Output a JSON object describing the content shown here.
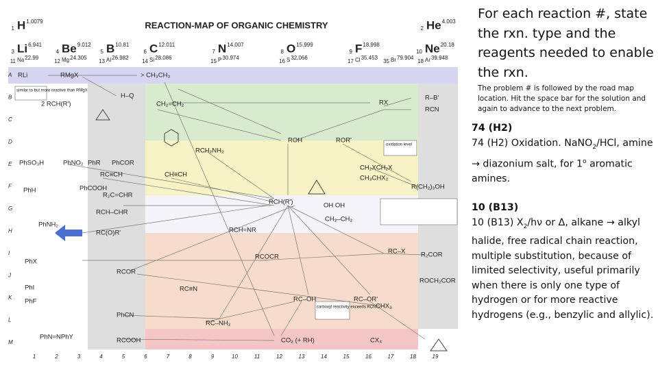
{
  "map": {
    "title": "REACTION-MAP OF ORGANIC CHEMISTRY",
    "elements": [
      {
        "number": 1,
        "symbol": "H",
        "mass": 1.0079
      },
      {
        "number": 2,
        "symbol": "He",
        "mass": 4.003
      },
      {
        "number": 3,
        "symbol": "Li",
        "mass": 6.941
      },
      {
        "number": 4,
        "symbol": "Be",
        "mass": 9.012
      },
      {
        "number": 5,
        "symbol": "B",
        "mass": 10.81
      },
      {
        "number": 6,
        "symbol": "C",
        "mass": 12.011
      },
      {
        "number": 7,
        "symbol": "N",
        "mass": 14.007
      },
      {
        "number": 8,
        "symbol": "O",
        "mass": 15.999
      },
      {
        "number": 9,
        "symbol": "F",
        "mass": 18.998
      },
      {
        "number": 10,
        "symbol": "Ne",
        "mass": 20.18
      }
    ],
    "elements_small": [
      {
        "number": 11,
        "symbol": "Na",
        "mass": 22.99
      },
      {
        "number": 12,
        "symbol": "Mg",
        "mass": 24.305
      },
      {
        "number": 13,
        "symbol": "Al",
        "mass": 26.982
      },
      {
        "number": 14,
        "symbol": "Si",
        "mass": 28.086
      },
      {
        "number": 15,
        "symbol": "P",
        "mass": 30.974
      },
      {
        "number": 16,
        "symbol": "S",
        "mass": 32.066
      },
      {
        "number": 17,
        "symbol": "Cl",
        "mass": 35.453
      },
      {
        "number": 35,
        "symbol": "Br",
        "mass": 79.904
      },
      {
        "number": 18,
        "symbol": "Ar",
        "mass": 39.948
      }
    ],
    "row_labels": [
      "A",
      "B",
      "C",
      "D",
      "E",
      "F",
      "G",
      "H",
      "I",
      "J",
      "K",
      "L",
      "M"
    ],
    "col_labels": [
      "1",
      "2",
      "3",
      "4",
      "5",
      "6",
      "7",
      "8",
      "9",
      "10",
      "11",
      "12",
      "13",
      "14",
      "15",
      "16",
      "17",
      "18",
      "19"
    ],
    "compounds": [
      "RLi",
      "RMgX",
      "> CH₃CH₃",
      "H–Q",
      "CH₂=CH₂",
      "RX",
      "R–B'",
      "RCN",
      "ROH",
      "ROR'",
      "PhSO₃H",
      "PhNO₂",
      "PhR",
      "PhCOR",
      "RCH₂NH₂",
      "CH≡CH",
      "RC≡CH",
      "CH₂XCH₂X",
      "CH₃CHX₂",
      "R(CH₂)₃OH",
      "PhH",
      "PhCOOH",
      "RCH(R')",
      "RCH–CHR",
      "CH₂–CH₂",
      "RCH=NR",
      "PhNH₂",
      "RC(O)R'",
      "RCOCR",
      "RC–X",
      "R₂COR",
      "PhX",
      "RCOR",
      "RC≡N",
      "ROCH₂COR",
      "PhI",
      "PhF",
      "RC–OH",
      "RC–OR'",
      "PhCN",
      "RC–NH₂",
      "CHX₃",
      "RCOOH",
      "CO₂ (+ RH)",
      "CX₄",
      "PhN=NPhY",
      "2 RCH(R')",
      "R₂C=CHR",
      "OH   OH"
    ],
    "notes": [
      "similar to but more reactive than RMgX",
      "oxidation level",
      "carboxyl reactivity exceeds RCN"
    ]
  },
  "panel": {
    "heading": "For each reaction #, state the rxn. type and the reagents needed to enable the rxn.",
    "instructions": "The problem # is followed by the road map location.  Hit the space bar for the solution and again to advance to the next problem.",
    "problems": [
      {
        "id": "74 (H2)",
        "answer": [
          {
            "text": "74 (H2)  Oxidation. Na"
          },
          {
            "text": "NO"
          },
          {
            "text": "2",
            "format": "sub"
          },
          {
            "text": "/HCl, amine → diazonium salt, for 1"
          },
          {
            "text": "o",
            "format": "sup"
          },
          {
            "text": " aromatic amines."
          }
        ]
      },
      {
        "id": "10  (B13)",
        "answer": [
          {
            "text": "10 (B13)  X"
          },
          {
            "text": "2",
            "format": "sub"
          },
          {
            "text": "/hν or Δ, alkane → alkyl halide, free radical chain reaction, multiple substitution, because of limited selectivity, useful primarily when there is only one type of hydrogen or for more reactive hydrogens (e.g., benzylic and allylic)."
          }
        ]
      }
    ]
  }
}
